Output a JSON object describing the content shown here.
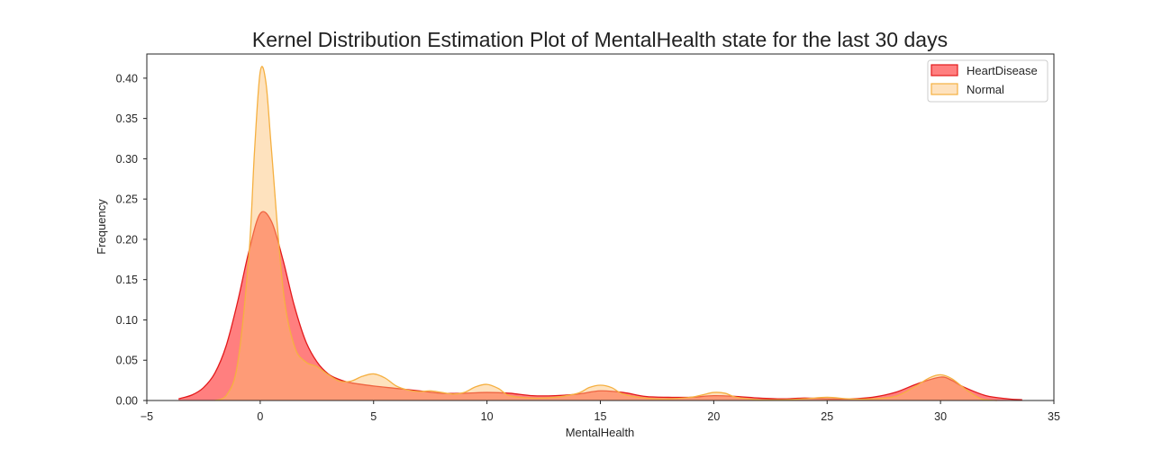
{
  "chart_data": {
    "type": "area",
    "title": "Kernel Distribution Estimation Plot of MentalHealth state for the last 30 days",
    "xlabel": "MentalHealth",
    "ylabel": "Frequency",
    "xlim": [
      -5,
      35
    ],
    "ylim": [
      0,
      0.43
    ],
    "xticks": [
      -5,
      0,
      5,
      10,
      15,
      20,
      25,
      30,
      35
    ],
    "xtick_labels": [
      "−5",
      "0",
      "5",
      "10",
      "15",
      "20",
      "25",
      "30",
      "35"
    ],
    "yticks": [
      0,
      0.05,
      0.1,
      0.15,
      0.2,
      0.25,
      0.3,
      0.35,
      0.4
    ],
    "ytick_labels": [
      "0.00",
      "0.05",
      "0.10",
      "0.15",
      "0.20",
      "0.25",
      "0.30",
      "0.35",
      "0.40"
    ],
    "grid": false,
    "legend_position": "top-right",
    "series": [
      {
        "name": "HeartDisease",
        "fill": "#ff0000",
        "stroke": "#e31a1c",
        "fill_opacity": 0.5,
        "x": [
          -3.6,
          -3.0,
          -2.5,
          -2.0,
          -1.5,
          -1.0,
          -0.5,
          0.0,
          0.5,
          1.0,
          1.5,
          2.0,
          2.5,
          3.0,
          3.5,
          4.0,
          5.0,
          6.0,
          7.0,
          8.0,
          9.0,
          10.0,
          11.0,
          12.0,
          13.0,
          14.0,
          15.0,
          16.0,
          17.0,
          18.0,
          19.0,
          20.0,
          21.0,
          22.0,
          23.0,
          24.0,
          25.0,
          26.0,
          27.0,
          28.0,
          29.0,
          30.0,
          30.5,
          31.0,
          32.0,
          33.0,
          33.6
        ],
        "y": [
          0.002,
          0.007,
          0.016,
          0.034,
          0.068,
          0.122,
          0.185,
          0.232,
          0.222,
          0.175,
          0.118,
          0.074,
          0.048,
          0.033,
          0.026,
          0.022,
          0.018,
          0.015,
          0.012,
          0.009,
          0.009,
          0.01,
          0.009,
          0.006,
          0.006,
          0.008,
          0.012,
          0.01,
          0.005,
          0.004,
          0.004,
          0.006,
          0.005,
          0.003,
          0.002,
          0.003,
          0.002,
          0.002,
          0.004,
          0.01,
          0.021,
          0.029,
          0.025,
          0.017,
          0.006,
          0.002,
          0.001
        ]
      },
      {
        "name": "Normal",
        "fill": "#fdbf6f",
        "stroke": "#f5b041",
        "fill_opacity": 0.45,
        "x": [
          -2.0,
          -1.5,
          -1.0,
          -0.5,
          -0.25,
          0.0,
          0.25,
          0.5,
          1.0,
          1.5,
          2.0,
          2.5,
          3.0,
          3.5,
          4.0,
          4.5,
          5.0,
          5.5,
          6.0,
          6.5,
          7.0,
          7.5,
          8.0,
          8.5,
          9.0,
          9.5,
          10.0,
          10.5,
          11.0,
          12.0,
          13.0,
          14.0,
          14.5,
          15.0,
          15.5,
          16.0,
          17.0,
          18.0,
          19.0,
          19.5,
          20.0,
          20.5,
          21.0,
          22.0,
          23.0,
          24.0,
          25.0,
          26.0,
          27.0,
          28.0,
          28.8,
          29.5,
          30.0,
          30.5,
          31.2,
          31.8,
          32.5
        ],
        "y": [
          0.0,
          0.006,
          0.045,
          0.18,
          0.31,
          0.408,
          0.395,
          0.31,
          0.14,
          0.068,
          0.048,
          0.042,
          0.032,
          0.024,
          0.024,
          0.03,
          0.033,
          0.028,
          0.018,
          0.013,
          0.011,
          0.012,
          0.01,
          0.008,
          0.01,
          0.017,
          0.02,
          0.015,
          0.006,
          0.003,
          0.004,
          0.009,
          0.016,
          0.019,
          0.016,
          0.008,
          0.003,
          0.002,
          0.004,
          0.007,
          0.01,
          0.009,
          0.004,
          0.001,
          0.001,
          0.002,
          0.004,
          0.002,
          0.002,
          0.005,
          0.016,
          0.028,
          0.032,
          0.027,
          0.012,
          0.002,
          0.0
        ]
      }
    ]
  }
}
